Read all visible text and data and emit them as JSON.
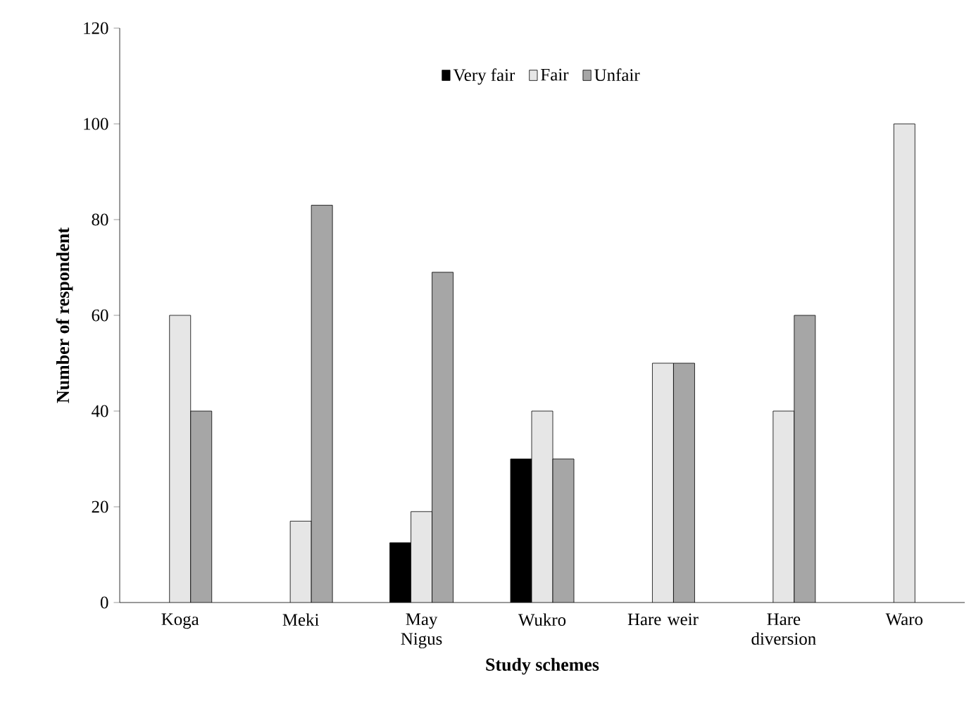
{
  "chart_data": {
    "type": "bar",
    "xlabel": "Study schemes",
    "ylabel": "Number of respondent",
    "categories": [
      "Koga",
      "Meki",
      "May Nigus",
      "Wukro",
      "Hare weir",
      "Hare diversion",
      "Waro"
    ],
    "series": [
      {
        "name": "Very fair",
        "color": "#000000",
        "values": [
          null,
          null,
          12.5,
          30,
          null,
          null,
          null
        ]
      },
      {
        "name": "Fair",
        "color": "#e6e6e6",
        "values": [
          60,
          17,
          19,
          40,
          50,
          40,
          100
        ]
      },
      {
        "name": "Unfair",
        "color": "#a6a6a6",
        "values": [
          40,
          83,
          69,
          30,
          50,
          60,
          null
        ]
      }
    ],
    "ylim": [
      0,
      120
    ],
    "yticks": [
      0,
      20,
      40,
      60,
      80,
      100,
      120
    ],
    "legend": "top",
    "grid": false
  }
}
